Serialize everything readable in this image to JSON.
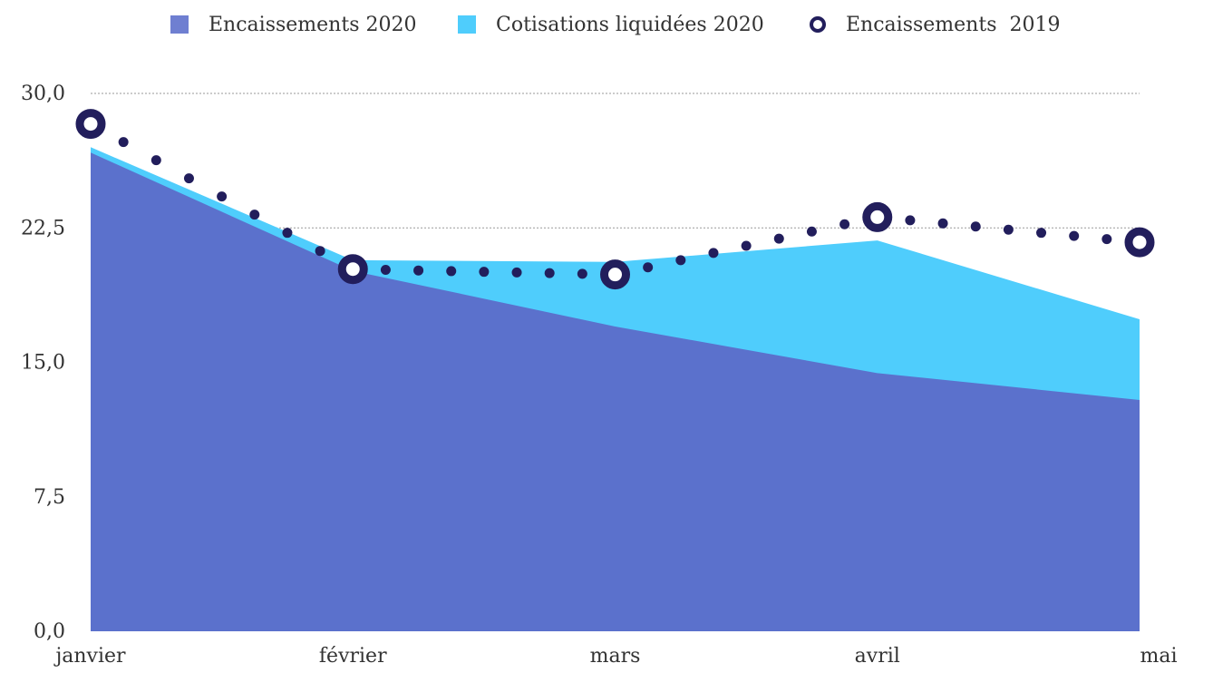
{
  "legend": {
    "item1": "Encaissements 2020",
    "item2": "Cotisations liquidées 2020",
    "item3": "Encaissements  2019"
  },
  "colors": {
    "encaissements_2020": "#5b71cc",
    "cotisations_2020": "#4fcdfc",
    "encaissements_2019": "#221e5c",
    "grid": "#9a9a9a"
  },
  "chart_data": {
    "type": "area",
    "categories": [
      "janvier",
      "février",
      "mars",
      "avril",
      "mai"
    ],
    "ylim": [
      0,
      30
    ],
    "yticks": [
      "0,0",
      "7,5",
      "15,0",
      "22,5",
      "30,0"
    ],
    "ytick_values": [
      0,
      7.5,
      15,
      22.5,
      30
    ],
    "grid": "horizontal dotted",
    "legend_position": "top",
    "series": [
      {
        "name": "Encaissements 2020",
        "style": "area",
        "values": [
          26.7,
          20.1,
          17.0,
          14.4,
          12.9
        ]
      },
      {
        "name": "Cotisations liquidées 2020",
        "style": "stacked-area-top",
        "values": [
          27.0,
          20.7,
          20.6,
          21.8,
          17.4
        ]
      },
      {
        "name": "Encaissements  2019",
        "style": "dotted-line",
        "values": [
          28.3,
          20.2,
          19.9,
          23.1,
          21.7
        ]
      }
    ]
  }
}
